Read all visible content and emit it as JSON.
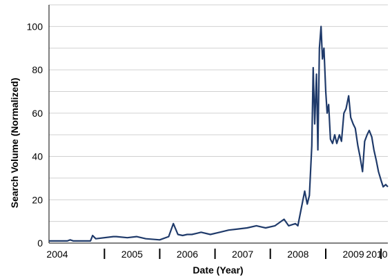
{
  "chart_data": {
    "type": "line",
    "title": "",
    "xlabel": "Date (Year)",
    "ylabel": "Search Volume (Normalized)",
    "ylim": [
      0,
      110
    ],
    "xlim": [
      "2004-01-01",
      "2010-02-15"
    ],
    "y_ticks": [
      0,
      20,
      40,
      60,
      80,
      100
    ],
    "x_tick_labels": [
      "2004",
      "2005",
      "2006",
      "2007",
      "2008",
      "2009",
      "2010"
    ],
    "x_tick_dates": [
      "2004-01-01",
      "2005-01-01",
      "2006-01-01",
      "2007-01-01",
      "2008-01-01",
      "2009-01-01",
      "2010-01-01"
    ],
    "grid": true,
    "legend": "none",
    "colors": {
      "line": "#1f3a6a",
      "grid": "#d0d0d0",
      "axis": "#000000"
    },
    "series": [
      {
        "x": [
          "2004-01-01",
          "2004-05-01",
          "2004-05-20",
          "2004-06-10",
          "2004-10-01",
          "2004-10-15",
          "2004-11-05",
          "2005-03-01",
          "2005-03-20",
          "2005-06-01",
          "2005-08-01",
          "2005-10-01",
          "2006-01-01",
          "2006-03-01",
          "2006-04-01",
          "2006-05-01",
          "2006-06-01",
          "2006-07-01",
          "2006-08-01",
          "2006-09-01",
          "2006-10-01",
          "2006-12-01",
          "2007-02-01",
          "2007-04-01",
          "2007-06-01",
          "2007-08-01",
          "2007-10-01",
          "2007-12-01",
          "2008-02-01",
          "2008-04-01",
          "2008-05-01",
          "2008-06-15",
          "2008-07-01",
          "2008-08-01",
          "2008-08-15",
          "2008-09-01",
          "2008-09-15",
          "2008-10-01",
          "2008-10-10",
          "2008-10-20",
          "2008-11-01",
          "2008-11-10",
          "2008-11-20",
          "2008-12-01",
          "2008-12-10",
          "2008-12-20",
          "2009-01-01",
          "2009-01-10",
          "2009-01-20",
          "2009-02-01",
          "2009-02-15",
          "2009-03-01",
          "2009-03-15",
          "2009-04-01",
          "2009-04-15",
          "2009-05-01",
          "2009-05-15",
          "2009-06-01",
          "2009-06-15",
          "2009-07-01",
          "2009-07-15",
          "2009-08-01",
          "2009-08-15",
          "2009-09-01",
          "2009-09-15",
          "2009-10-01",
          "2009-10-15",
          "2009-11-01",
          "2009-11-15",
          "2009-12-01",
          "2009-12-15",
          "2010-01-01",
          "2010-01-15",
          "2010-02-01",
          "2010-02-15"
        ],
        "values": [
          1,
          1,
          1.5,
          1,
          1,
          3.5,
          2,
          3,
          3,
          2.5,
          3,
          2,
          1.5,
          3,
          9,
          4,
          3.5,
          4,
          4,
          4.5,
          5,
          4,
          5,
          6,
          6.5,
          7,
          8,
          7,
          8,
          11,
          8,
          9,
          8,
          19,
          24,
          18,
          22,
          45,
          81,
          55,
          78,
          43,
          90,
          100,
          85,
          90,
          70,
          60,
          64,
          48,
          46,
          50,
          46,
          50,
          47,
          60,
          62,
          68,
          58,
          55,
          53,
          45,
          40,
          33,
          47,
          50,
          52,
          49,
          43,
          38,
          33,
          29,
          26,
          27,
          26
        ]
      }
    ]
  }
}
